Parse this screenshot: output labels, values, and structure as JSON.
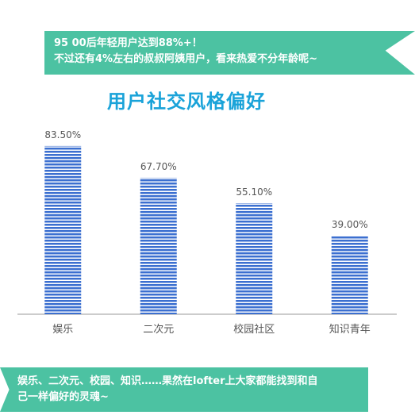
{
  "colors": {
    "accent": "#4cc2a2",
    "title": "#1aa3d9",
    "bar_stripe_a": "#3b6fd0",
    "bar_stripe_b": "#ffffff",
    "label": "#555555",
    "axis": "#999999"
  },
  "banner_top": {
    "line1": "95 00后年轻用户达到88%+！",
    "line2": "不过还有4%左右的叔叔阿姨用户，看来热爱不分年龄呢~"
  },
  "banner_bottom": {
    "line1": "娱乐、二次元、校园、知识……果然在lofter上大家都能找到和自",
    "line2": "己一样偏好的灵魂~"
  },
  "chart_data": {
    "type": "bar",
    "title": "用户社交风格偏好",
    "categories": [
      "娱乐",
      "二次元",
      "校园社区",
      "知识青年"
    ],
    "values": [
      83.5,
      67.7,
      55.1,
      39.0
    ],
    "labels": [
      "83.50%",
      "67.70%",
      "55.10%",
      "39.00%"
    ],
    "ylim": [
      0,
      100
    ],
    "grid": false,
    "legend": "none"
  }
}
